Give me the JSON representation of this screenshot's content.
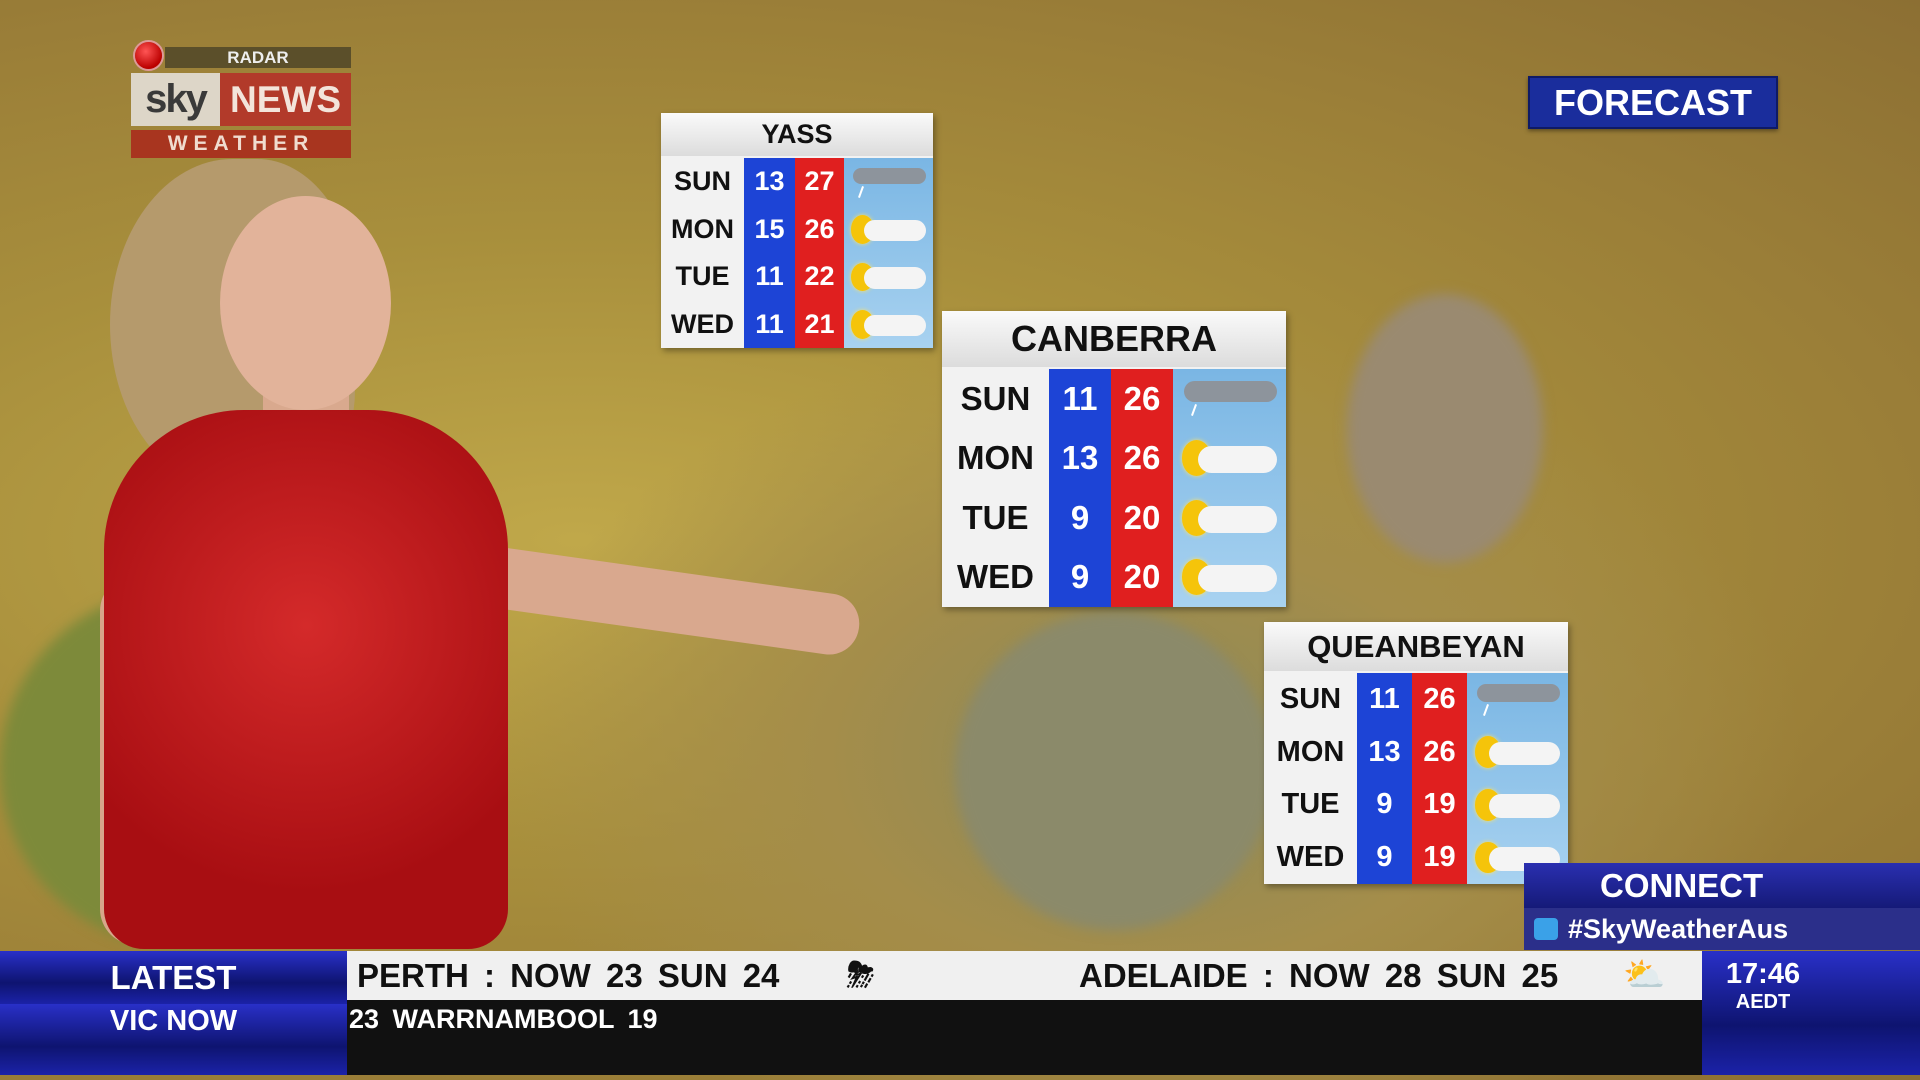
{
  "logo": {
    "radar": "RADAR",
    "sky": "sky",
    "news": "NEWS",
    "weather": "WEATHER"
  },
  "forecast_label": "FORECAST",
  "cards": [
    {
      "city": "YASS",
      "rows": [
        {
          "day": "SUN",
          "low": "13",
          "high": "27",
          "icon": "cloud-rain-icon"
        },
        {
          "day": "MON",
          "low": "15",
          "high": "26",
          "icon": "sun-cloud-icon"
        },
        {
          "day": "TUE",
          "low": "11",
          "high": "22",
          "icon": "sun-cloud-icon"
        },
        {
          "day": "WED",
          "low": "11",
          "high": "21",
          "icon": "sun-cloud-icon"
        }
      ]
    },
    {
      "city": "CANBERRA",
      "rows": [
        {
          "day": "SUN",
          "low": "11",
          "high": "26",
          "icon": "cloud-rain-icon"
        },
        {
          "day": "MON",
          "low": "13",
          "high": "26",
          "icon": "sun-cloud-icon"
        },
        {
          "day": "TUE",
          "low": "9",
          "high": "20",
          "icon": "sun-cloud-icon"
        },
        {
          "day": "WED",
          "low": "9",
          "high": "20",
          "icon": "sun-cloud-icon"
        }
      ]
    },
    {
      "city": "QUEANBEYAN",
      "rows": [
        {
          "day": "SUN",
          "low": "11",
          "high": "26",
          "icon": "cloud-rain-icon"
        },
        {
          "day": "MON",
          "low": "13",
          "high": "26",
          "icon": "sun-cloud-icon"
        },
        {
          "day": "TUE",
          "low": "9",
          "high": "19",
          "icon": "sun-cloud-icon"
        },
        {
          "day": "WED",
          "low": "9",
          "high": "19",
          "icon": "sun-cloud-icon"
        }
      ]
    }
  ],
  "connect": {
    "title": "CONNECT",
    "hashtag": "#SkyWeatherAus"
  },
  "ticker": {
    "latest": "LATEST",
    "vic_now": "VIC NOW",
    "perth": "PERTH :  NOW  23   SUN  24",
    "adelaide": "ADELAIDE :  NOW  28   SUN  25",
    "vic_text": "23   WARRNAMBOOL 19",
    "time": "17:46",
    "tz": "AEDT"
  },
  "colors": {
    "low": "#1d44d6",
    "high": "#e01f1f",
    "brand_blue": "#1a2d9c"
  }
}
